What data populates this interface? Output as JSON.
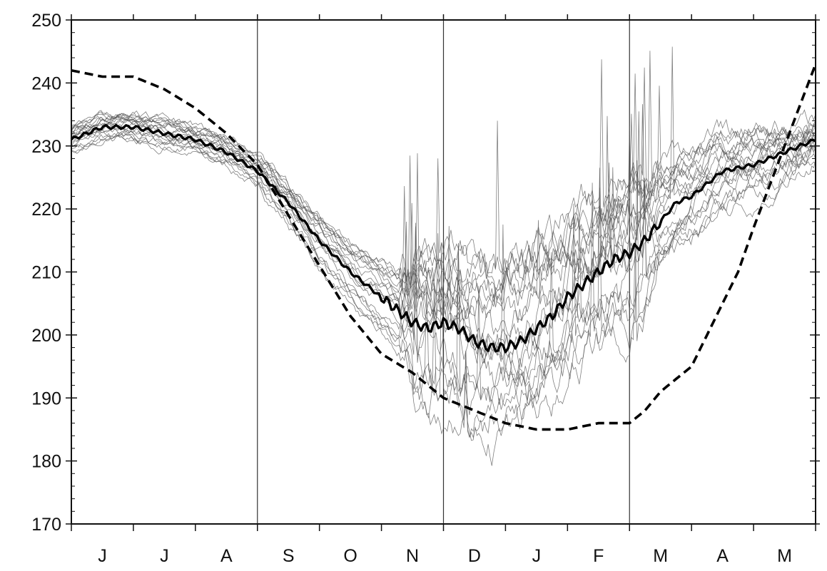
{
  "chart_data": {
    "type": "line",
    "title": "",
    "xlabel": "",
    "ylabel": "",
    "ylim": [
      170,
      250
    ],
    "y_ticks": [
      170,
      180,
      190,
      200,
      210,
      220,
      230,
      240,
      250
    ],
    "x_month_labels": [
      "J",
      "J",
      "A",
      "S",
      "O",
      "N",
      "D",
      "J",
      "F",
      "M",
      "A",
      "M"
    ],
    "x_unit": "month index (0 = start of June, 12 = end of May)",
    "grid_vertical_at_month": [
      3,
      6,
      9
    ],
    "colors": {
      "mean": "#000000",
      "ensemble": "#555555",
      "dashed_bound": "#000000"
    },
    "series": [
      {
        "kind": "ensemble-mean",
        "x": [
          0,
          0.5,
          1,
          1.5,
          2,
          2.5,
          3,
          3.5,
          4,
          4.5,
          5,
          5.25,
          5.5,
          5.75,
          6,
          6.25,
          6.5,
          6.75,
          7,
          7.25,
          7.5,
          7.75,
          8,
          8.25,
          8.5,
          8.75,
          9,
          9.25,
          9.5,
          9.75,
          10,
          10.25,
          10.5,
          11,
          11.5,
          12
        ],
        "y": [
          231,
          233,
          233,
          232,
          231,
          229,
          226,
          221,
          215,
          210,
          206,
          204,
          202,
          201,
          202,
          201,
          199,
          198,
          198,
          199,
          201,
          203,
          206,
          208,
          210,
          212,
          213,
          215,
          218,
          221,
          222,
          224,
          226,
          227,
          229,
          231
        ]
      },
      {
        "kind": "dashed-envelope",
        "x": [
          0,
          0.5,
          1,
          1.5,
          2,
          2.5,
          3,
          3.5,
          4,
          4.5,
          5,
          5.5,
          6,
          6.5,
          7,
          7.5,
          8,
          8.5,
          9,
          9.25,
          9.5,
          10,
          10.25,
          10.5,
          10.75,
          11,
          11.5,
          12
        ],
        "y": [
          242,
          241,
          241,
          239,
          236,
          232,
          227,
          219,
          211,
          203,
          197,
          194,
          190,
          188,
          186,
          185,
          185,
          186,
          186,
          188,
          191,
          195,
          200,
          205,
          210,
          217,
          230,
          243
        ]
      }
    ],
    "ensemble": {
      "members": 20,
      "approx_spread": [
        {
          "from_month": 0,
          "to_month": 3,
          "range": [
            228,
            235
          ]
        },
        {
          "from_month": 3,
          "to_month": 5.5,
          "range": [
            200,
            225
          ]
        },
        {
          "from_month": 5.5,
          "to_month": 9,
          "range": [
            188,
            243
          ]
        },
        {
          "from_month": 9,
          "to_month": 12,
          "range": [
            195,
            238
          ]
        }
      ]
    }
  }
}
